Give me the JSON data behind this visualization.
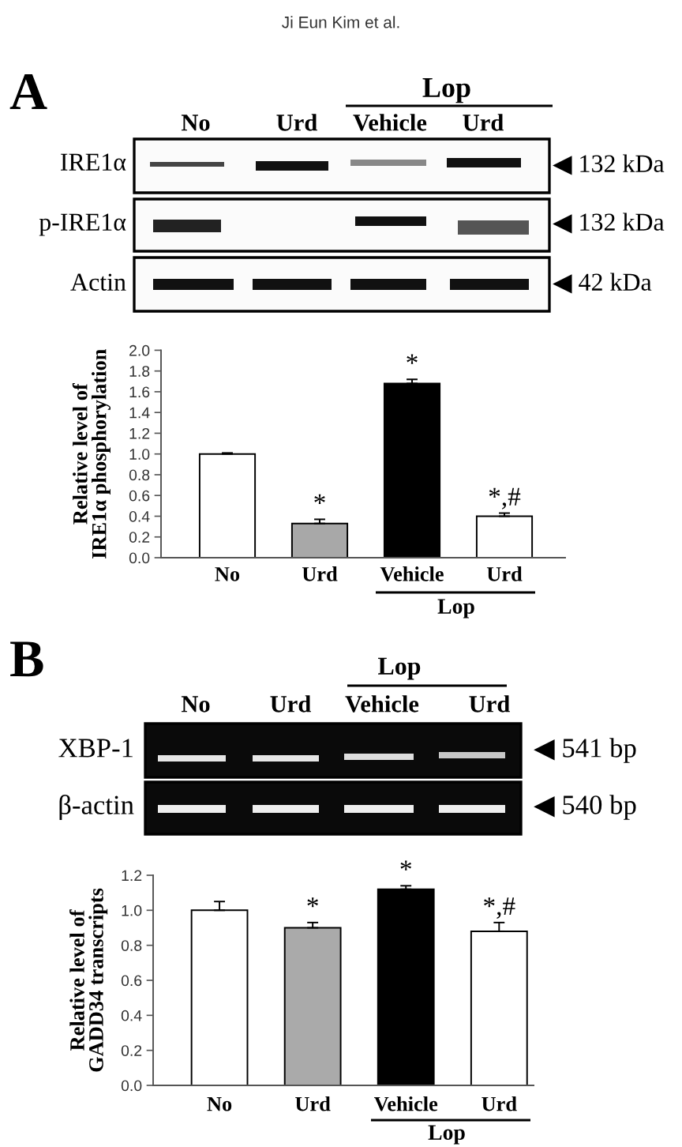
{
  "chart_data": [
    {
      "type": "bar",
      "ylabel": "Relative level of\nIRE1α phosphorylation",
      "categories": [
        "No",
        "Urd",
        "Vehicle",
        "Urd"
      ],
      "values": [
        1.0,
        0.33,
        1.68,
        0.4
      ],
      "colors": [
        "#ffffff",
        "#a8a8a8",
        "#000000",
        "#ffffff"
      ],
      "errors": [
        [
          1.0,
          1.01
        ],
        [
          0.33,
          0.37
        ],
        [
          1.68,
          1.72
        ],
        [
          0.4,
          0.43
        ]
      ],
      "value_labels": [
        null,
        "*",
        "*",
        "*,#"
      ],
      "ylim": [
        0,
        2.0
      ],
      "yticks": [
        {
          "value": 0,
          "label": "0.0"
        },
        0.2,
        0.4,
        0.6,
        0.8,
        {
          "value": 1,
          "label": "1.0"
        },
        1.2,
        1.4,
        1.6,
        1.8,
        {
          "value": 2,
          "label": "2.0"
        }
      ],
      "annotations": [
        "Ji Eun Kim et al.",
        "A",
        "Lop",
        "IRE1α",
        "p-IRE1α",
        "Actin",
        "◀ 132 kDa",
        "◀ 132 kDa",
        "◀ 42 kDa",
        "Lop"
      ]
    },
    {
      "type": "bar",
      "ylabel": "Relative level of\nGADD34 transcripts",
      "categories": [
        "No",
        "Urd",
        "Vehicle",
        "Urd"
      ],
      "values": [
        1.0,
        0.9,
        1.12,
        0.88
      ],
      "colors": [
        "#ffffff",
        "#aaaaaa",
        "#000000",
        "#ffffff"
      ],
      "errors": [
        [
          1.0,
          1.05
        ],
        [
          0.9,
          0.93
        ],
        [
          1.12,
          1.14
        ],
        [
          0.88,
          0.93
        ]
      ],
      "value_labels": [
        null,
        "*",
        "*",
        "*,#"
      ],
      "ylim": [
        0,
        1.2
      ],
      "yticks": [
        {
          "value": 0,
          "label": "0.0"
        },
        0.2,
        0.4,
        0.6,
        0.8,
        {
          "value": 1,
          "label": "1.0"
        },
        1.2
      ],
      "annotations": [
        "B",
        "Lop",
        "XBP-1",
        "β-actin",
        "◀ 541 bp",
        "◀ 540 bp",
        "Lop"
      ]
    }
  ]
}
